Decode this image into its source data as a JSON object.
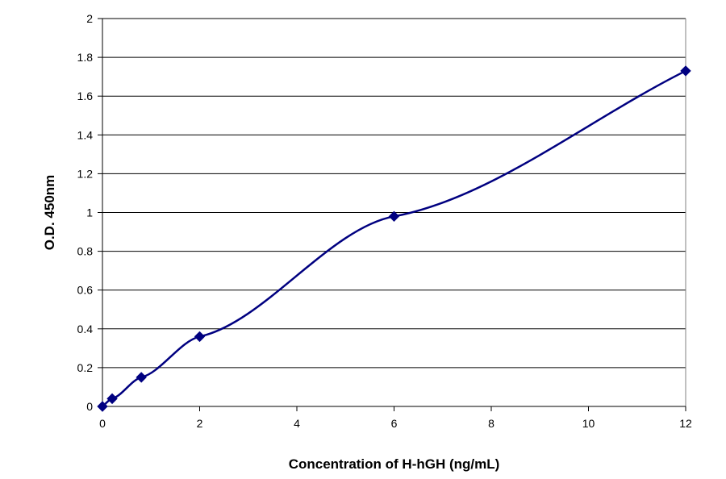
{
  "chart_data": {
    "type": "line",
    "title": "",
    "xlabel": "Concentration of H-hGH (ng/mL)",
    "ylabel": "O.D. 450nm",
    "xlim": [
      0,
      12
    ],
    "ylim": [
      0,
      2
    ],
    "x_ticks": [
      0,
      2,
      4,
      6,
      8,
      10,
      12
    ],
    "y_ticks": [
      0,
      0.2,
      0.4,
      0.6,
      0.8,
      1,
      1.2,
      1.4,
      1.6,
      1.8,
      2
    ],
    "x_tick_labels": [
      "0",
      "2",
      "4",
      "6",
      "8",
      "10",
      "12"
    ],
    "y_tick_labels": [
      "0",
      "0.2",
      "0.4",
      "0.6",
      "0.8",
      "1",
      "1.2",
      "1.4",
      "1.6",
      "1.8",
      "2"
    ],
    "grid": "horizontal",
    "legend": "none",
    "smooth": true,
    "series": [
      {
        "color": "#000080",
        "marker": "diamond",
        "x": [
          0,
          0.2,
          0.8,
          2,
          6,
          12
        ],
        "y": [
          0,
          0.04,
          0.15,
          0.36,
          0.98,
          1.73
        ]
      }
    ]
  }
}
